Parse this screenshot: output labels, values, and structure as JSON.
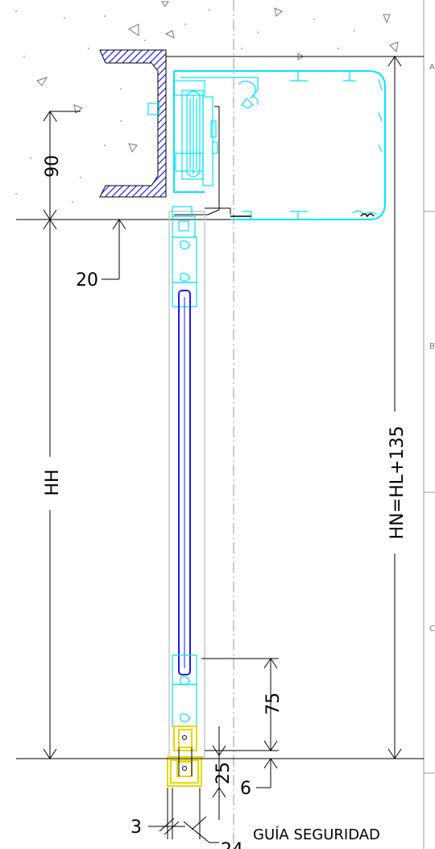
{
  "drawing": {
    "dimensions": {
      "top_offset": "90",
      "lintel_gap": "20",
      "opening_height": "HH",
      "total_height": "HN=HL+135",
      "bottom_rail": "75",
      "bottom_gap": "25",
      "bottom_offset": "6",
      "side_gap": "3",
      "bottom_width": "24"
    },
    "labels": {
      "security_guide": "GUÍA SEGURIDAD"
    },
    "frame_marks": [
      "A",
      "B",
      "C"
    ],
    "colors": {
      "profile": "#00e5ff",
      "glass": "#1a1aff",
      "guide": "#e8d800",
      "hatch": "#1a1aff",
      "lines": "#000000"
    }
  }
}
